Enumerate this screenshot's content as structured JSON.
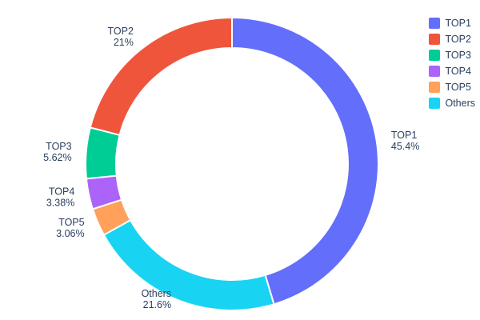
{
  "page": {
    "background_color": "#ffffff",
    "text_color": "#2a3f5f"
  },
  "chart_data": {
    "type": "pie",
    "title": "",
    "labels": [
      "TOP1",
      "TOP2",
      "TOP3",
      "TOP4",
      "TOP5",
      "Others"
    ],
    "values": [
      45.4,
      21,
      5.62,
      3.38,
      3.06,
      21.6
    ],
    "pct_labels": [
      "45.4%",
      "21%",
      "5.62%",
      "3.38%",
      "3.06%",
      "21.6%"
    ],
    "colors": [
      "#636EFA",
      "#EF553B",
      "#00CC96",
      "#AB63FA",
      "#FFA15A",
      "#19D3F3"
    ],
    "hole": 0.79,
    "start_angle": "top",
    "direction": "clockwise",
    "clockwise_order_indices": [
      0,
      5,
      4,
      3,
      2,
      1
    ],
    "legend_position": "top-right",
    "legend_entries": [
      "TOP1",
      "TOP2",
      "TOP3",
      "TOP4",
      "TOP5",
      "Others"
    ]
  }
}
